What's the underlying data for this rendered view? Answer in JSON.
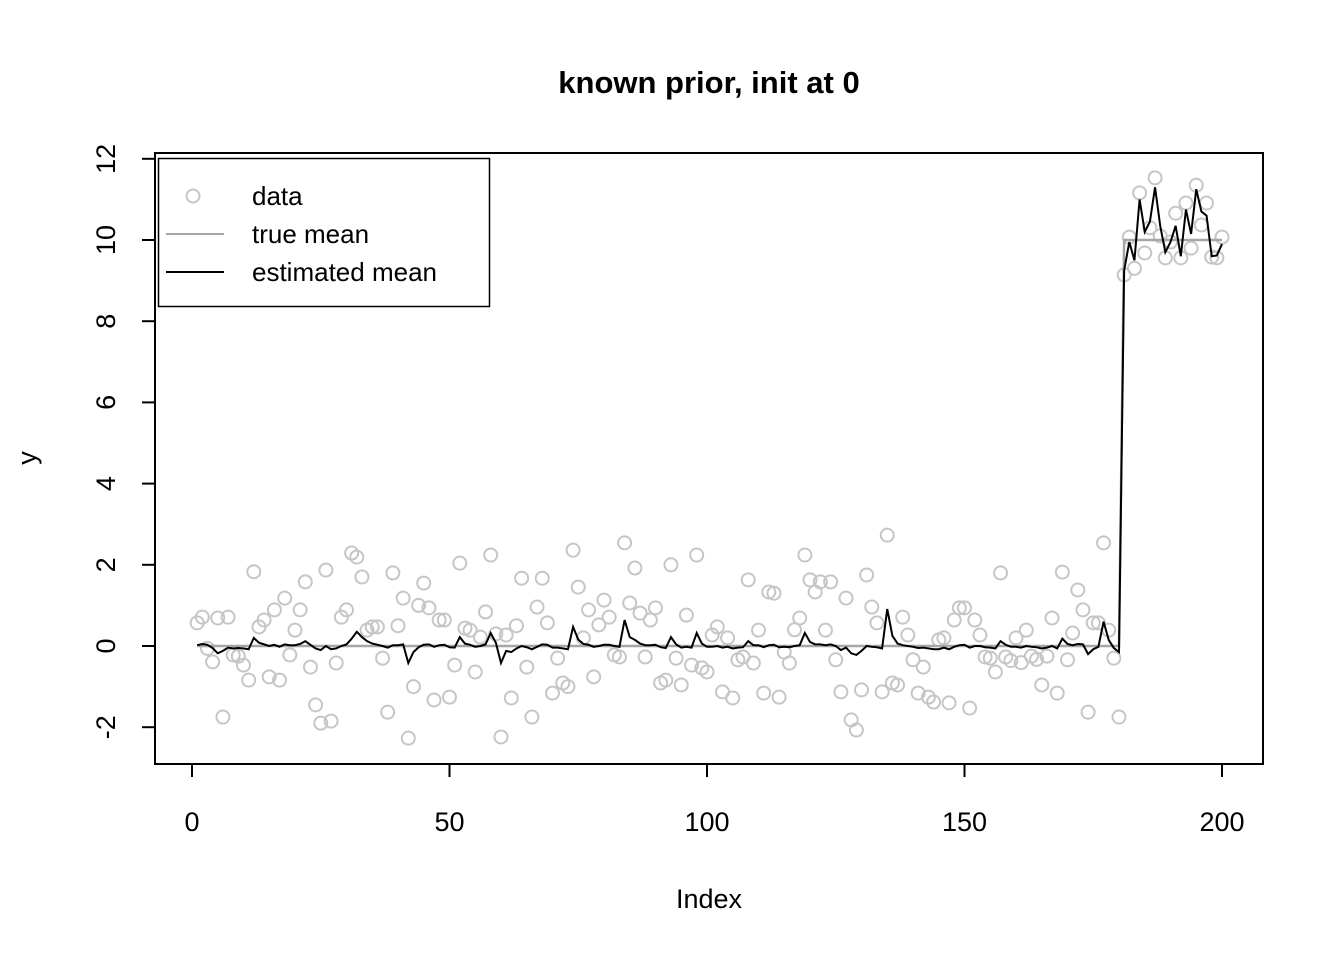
{
  "title": "known prior, init at 0",
  "x_axis": {
    "label": "Index",
    "ticks": [
      0,
      50,
      100,
      150,
      200
    ]
  },
  "y_axis": {
    "label": "y",
    "ticks": [
      -2,
      0,
      2,
      4,
      6,
      8,
      10,
      12
    ]
  },
  "legend": {
    "position": "top-left",
    "items": [
      {
        "label": "data",
        "symbol": "open-circle",
        "color": "#c6c6c6"
      },
      {
        "label": "true mean",
        "symbol": "line",
        "color": "#a6a6a6"
      },
      {
        "label": "estimated mean",
        "symbol": "line",
        "color": "#000000"
      }
    ]
  },
  "colors": {
    "data_point": "#c6c6c6",
    "true_mean": "#a6a6a6",
    "estimated_mean": "#000000",
    "axis": "#000000",
    "background": "#ffffff"
  },
  "chart_data": {
    "type": "scatter",
    "title": "known prior, init at 0",
    "xlabel": "Index",
    "ylabel": "y",
    "x_start": 1,
    "x_step": 1,
    "n_points": 200,
    "xlim": [
      -7,
      208
    ],
    "ylim": [
      -2.9,
      12.2
    ],
    "grid": false,
    "legend_position": "top-left",
    "change_point": {
      "index": 181,
      "mean_before": 0,
      "mean_after": 10
    },
    "series": [
      {
        "name": "data",
        "type": "scatter",
        "marker": "open-circle",
        "values": [
          0.57,
          0.71,
          -0.06,
          -0.39,
          0.69,
          -1.75,
          0.71,
          -0.22,
          -0.25,
          -0.47,
          -0.84,
          1.83,
          0.47,
          0.64,
          -0.76,
          0.89,
          -0.84,
          1.18,
          -0.22,
          0.39,
          0.89,
          1.58,
          -0.52,
          -1.45,
          -1.9,
          1.87,
          -1.85,
          -0.42,
          0.71,
          0.89,
          2.29,
          2.19,
          1.7,
          0.39,
          0.47,
          0.47,
          -0.3,
          -1.63,
          1.8,
          0.5,
          1.18,
          -2.27,
          -1.0,
          1.0,
          1.55,
          0.94,
          -1.33,
          0.64,
          0.64,
          -1.26,
          -0.47,
          2.04,
          0.44,
          0.39,
          -0.64,
          0.22,
          0.84,
          2.24,
          0.3,
          -2.24,
          0.27,
          -1.28,
          0.5,
          1.67,
          -0.52,
          -1.75,
          0.96,
          1.67,
          0.57,
          -1.16,
          -0.3,
          -0.91,
          -1.0,
          2.36,
          1.45,
          0.2,
          0.89,
          -0.76,
          0.52,
          1.13,
          0.71,
          -0.22,
          -0.27,
          2.54,
          1.06,
          1.92,
          0.81,
          -0.27,
          0.64,
          0.94,
          -0.91,
          -0.84,
          2.0,
          -0.3,
          -0.96,
          0.76,
          -0.47,
          2.24,
          -0.54,
          -0.64,
          0.27,
          0.47,
          -1.13,
          0.2,
          -1.28,
          -0.34,
          -0.27,
          1.63,
          -0.42,
          0.39,
          -1.16,
          1.33,
          1.3,
          -1.26,
          -0.15,
          -0.42,
          0.4,
          0.69,
          2.24,
          1.63,
          1.33,
          1.58,
          0.39,
          1.58,
          -0.34,
          -1.13,
          1.18,
          -1.82,
          -2.07,
          -1.08,
          1.75,
          0.96,
          0.57,
          -1.13,
          2.73,
          -0.91,
          -0.96,
          0.71,
          0.27,
          -0.34,
          -1.16,
          -0.52,
          -1.26,
          -1.38,
          0.15,
          0.2,
          -1.4,
          0.64,
          0.94,
          0.94,
          -1.53,
          0.64,
          0.27,
          -0.27,
          -0.3,
          -0.64,
          1.8,
          -0.27,
          -0.36,
          0.2,
          -0.41,
          0.39,
          -0.25,
          -0.33,
          -0.96,
          -0.25,
          0.69,
          -1.16,
          1.82,
          -0.34,
          0.32,
          1.38,
          0.89,
          -1.63,
          0.57,
          0.57,
          2.54,
          0.39,
          -0.3,
          -1.75,
          9.14,
          10.07,
          9.3,
          11.16,
          9.68,
          10.3,
          11.53,
          10.1,
          9.56,
          9.95,
          10.66,
          9.56,
          10.91,
          9.8,
          11.35,
          10.37,
          10.91,
          9.58,
          9.56,
          10.07
        ]
      },
      {
        "name": "true mean",
        "type": "step-line",
        "segments": [
          {
            "x1": 1,
            "x2": 180,
            "y": 0
          },
          {
            "x1": 181,
            "x2": 200,
            "y": 10
          }
        ]
      },
      {
        "name": "estimated mean",
        "type": "line",
        "values": [
          0.02,
          0.05,
          0.03,
          -0.05,
          -0.18,
          -0.12,
          -0.04,
          -0.06,
          -0.05,
          -0.06,
          -0.08,
          0.2,
          0.08,
          0.04,
          0.0,
          0.03,
          -0.02,
          0.04,
          0.02,
          0.02,
          0.05,
          0.12,
          0.03,
          -0.06,
          -0.1,
          0.0,
          -0.08,
          -0.06,
          0.0,
          0.04,
          0.18,
          0.35,
          0.22,
          0.12,
          0.06,
          0.03,
          0.0,
          -0.04,
          0.02,
          0.02,
          0.04,
          -0.42,
          -0.15,
          -0.03,
          0.03,
          0.04,
          -0.02,
          0.02,
          0.03,
          -0.03,
          -0.04,
          0.22,
          0.06,
          0.03,
          -0.02,
          0.0,
          0.04,
          0.32,
          0.08,
          -0.42,
          -0.12,
          -0.15,
          -0.06,
          0.0,
          -0.03,
          -0.08,
          -0.02,
          0.04,
          0.03,
          -0.04,
          -0.04,
          -0.06,
          -0.08,
          0.47,
          0.16,
          0.05,
          0.03,
          -0.02,
          0.0,
          0.03,
          0.03,
          0.0,
          -0.02,
          0.64,
          0.22,
          0.15,
          0.06,
          0.02,
          0.02,
          0.03,
          -0.03,
          -0.05,
          0.22,
          0.04,
          -0.04,
          -0.02,
          -0.04,
          0.32,
          0.06,
          -0.02,
          -0.02,
          0.0,
          -0.04,
          -0.02,
          -0.06,
          -0.04,
          -0.03,
          0.12,
          0.02,
          0.02,
          -0.03,
          0.02,
          0.03,
          -0.03,
          -0.02,
          -0.03,
          0.0,
          0.02,
          0.32,
          0.1,
          0.04,
          0.04,
          0.02,
          0.04,
          0.0,
          -0.1,
          -0.04,
          -0.18,
          -0.22,
          -0.12,
          0.0,
          -0.02,
          -0.03,
          -0.06,
          0.91,
          0.25,
          0.06,
          0.02,
          0.0,
          -0.02,
          -0.05,
          -0.04,
          -0.06,
          -0.08,
          -0.08,
          -0.04,
          -0.08,
          -0.02,
          0.02,
          0.03,
          -0.04,
          0.0,
          0.0,
          -0.03,
          -0.04,
          -0.06,
          0.12,
          0.03,
          -0.02,
          -0.02,
          -0.04,
          0.0,
          -0.02,
          -0.03,
          -0.06,
          -0.04,
          0.0,
          -0.06,
          0.18,
          0.05,
          0.02,
          0.05,
          0.04,
          -0.2,
          -0.08,
          -0.02,
          0.6,
          0.15,
          -0.05,
          -0.15,
          9.25,
          9.95,
          9.5,
          11.0,
          10.2,
          10.45,
          11.3,
          10.35,
          9.7,
          9.95,
          10.35,
          9.6,
          10.75,
          10.15,
          11.25,
          10.7,
          10.6,
          9.6,
          9.62,
          9.9
        ]
      }
    ]
  }
}
